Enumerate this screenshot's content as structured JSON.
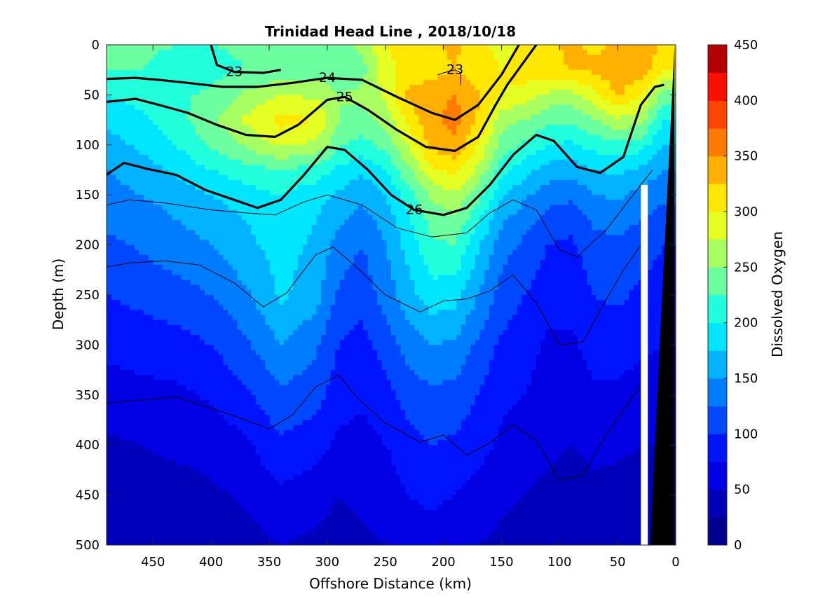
{
  "chart_data": {
    "type": "heatmap",
    "subtype": "filled-contour-section",
    "title": "Trinidad Head Line , 2018/10/18",
    "xlabel": "Offshore Distance (km)",
    "ylabel": "Depth (m)",
    "colorbar_label": "Dissolved Oxygen",
    "xlim": [
      490,
      0
    ],
    "x_reversed": true,
    "ylim": [
      0,
      500
    ],
    "y_reversed": true,
    "x_ticks": [
      "450",
      "400",
      "350",
      "300",
      "250",
      "200",
      "150",
      "100",
      "50",
      "0"
    ],
    "y_ticks": [
      "0",
      "50",
      "100",
      "150",
      "200",
      "250",
      "300",
      "350",
      "400",
      "450",
      "500"
    ],
    "colorbar_ticks": [
      "0",
      "50",
      "100",
      "150",
      "200",
      "250",
      "300",
      "350",
      "400",
      "450"
    ],
    "colorbar_range": [
      0,
      450
    ],
    "colorbar_step": 25,
    "colormap": [
      "#00008f",
      "#0000b8",
      "#0000e2",
      "#0014ff",
      "#0048ff",
      "#007dff",
      "#00b2ff",
      "#00e6ff",
      "#22ffdd",
      "#6bffa0",
      "#a8ff62",
      "#e5ff25",
      "#ffe700",
      "#ffb000",
      "#ff7a00",
      "#ff4400",
      "#ff0e00",
      "#b40000"
    ],
    "x_stations_km": [
      490,
      460,
      430,
      400,
      370,
      340,
      310,
      290,
      270,
      250,
      230,
      210,
      190,
      170,
      150,
      130,
      110,
      90,
      70,
      50,
      30,
      10
    ],
    "depths_m": [
      0,
      25,
      50,
      75,
      100,
      125,
      150,
      175,
      200,
      250,
      300,
      350,
      400,
      450,
      500
    ],
    "oxygen_profiles": [
      [
        230,
        230,
        225,
        225,
        230,
        235,
        240,
        245,
        255,
        300,
        310,
        320,
        330,
        310,
        290,
        305,
        320,
        330,
        320,
        330,
        350,
        320
      ],
      [
        225,
        225,
        215,
        215,
        225,
        235,
        240,
        235,
        240,
        290,
        310,
        315,
        325,
        310,
        300,
        310,
        320,
        325,
        330,
        340,
        340,
        300
      ],
      [
        200,
        210,
        220,
        230,
        255,
        275,
        270,
        250,
        255,
        280,
        330,
        340,
        350,
        330,
        300,
        290,
        270,
        265,
        290,
        330,
        300,
        240
      ],
      [
        180,
        195,
        215,
        245,
        280,
        310,
        300,
        250,
        240,
        260,
        310,
        345,
        360,
        320,
        260,
        250,
        230,
        230,
        250,
        270,
        260,
        200
      ],
      [
        165,
        180,
        200,
        230,
        255,
        280,
        270,
        230,
        215,
        235,
        280,
        335,
        345,
        300,
        240,
        220,
        200,
        195,
        210,
        220,
        210,
        175
      ],
      [
        150,
        165,
        180,
        200,
        215,
        225,
        215,
        195,
        180,
        200,
        245,
        295,
        310,
        270,
        210,
        185,
        165,
        160,
        175,
        180,
        170,
        150
      ],
      [
        140,
        150,
        160,
        175,
        190,
        200,
        185,
        170,
        155,
        175,
        215,
        255,
        270,
        235,
        180,
        155,
        135,
        130,
        150,
        155,
        140,
        130
      ],
      [
        130,
        138,
        150,
        160,
        175,
        190,
        175,
        155,
        140,
        160,
        195,
        235,
        245,
        205,
        155,
        135,
        115,
        110,
        130,
        135,
        125,
        115
      ],
      [
        120,
        128,
        140,
        150,
        170,
        185,
        170,
        140,
        125,
        150,
        185,
        220,
        225,
        180,
        135,
        120,
        100,
        95,
        115,
        120,
        110,
        100
      ],
      [
        100,
        108,
        115,
        125,
        145,
        180,
        160,
        120,
        110,
        135,
        165,
        190,
        185,
        150,
        115,
        100,
        85,
        85,
        100,
        105,
        95,
        90
      ],
      [
        80,
        85,
        90,
        100,
        120,
        150,
        130,
        100,
        90,
        110,
        135,
        150,
        145,
        120,
        95,
        85,
        70,
        70,
        85,
        85,
        80,
        75
      ],
      [
        65,
        68,
        70,
        78,
        95,
        120,
        110,
        85,
        80,
        90,
        110,
        120,
        115,
        100,
        80,
        75,
        65,
        60,
        70,
        70,
        65,
        60
      ],
      [
        45,
        50,
        55,
        60,
        70,
        95,
        85,
        70,
        65,
        75,
        90,
        100,
        95,
        85,
        70,
        60,
        55,
        50,
        55,
        55,
        50,
        50
      ],
      [
        35,
        40,
        40,
        45,
        55,
        70,
        60,
        50,
        55,
        60,
        75,
        80,
        75,
        65,
        55,
        50,
        45,
        40,
        45,
        40,
        40,
        40
      ],
      [
        25,
        28,
        30,
        35,
        40,
        50,
        45,
        40,
        45,
        50,
        60,
        65,
        60,
        50,
        45,
        40,
        35,
        30,
        35,
        30,
        30,
        30
      ]
    ],
    "density_isopycnals": [
      {
        "label": "23",
        "bold": true,
        "points": [
          [
            400,
            0
          ],
          [
            395,
            20
          ],
          [
            380,
            27
          ],
          [
            355,
            28
          ],
          [
            340,
            25
          ]
        ]
      },
      {
        "label": "23",
        "bold": false,
        "points": [
          [
            205,
            30
          ],
          [
            200,
            28
          ],
          [
            190,
            25
          ],
          [
            185,
            28
          ],
          [
            185,
            40
          ]
        ]
      },
      {
        "label": "24",
        "bold": true,
        "points": [
          [
            490,
            34
          ],
          [
            465,
            33
          ],
          [
            445,
            35
          ],
          [
            420,
            38
          ],
          [
            390,
            42
          ],
          [
            360,
            42
          ],
          [
            330,
            38
          ],
          [
            300,
            33
          ],
          [
            270,
            35
          ],
          [
            240,
            52
          ],
          [
            210,
            68
          ],
          [
            190,
            75
          ],
          [
            170,
            60
          ],
          [
            150,
            30
          ],
          [
            135,
            0
          ]
        ]
      },
      {
        "label": "25",
        "bold": true,
        "points": [
          [
            490,
            57
          ],
          [
            465,
            54
          ],
          [
            445,
            60
          ],
          [
            420,
            68
          ],
          [
            395,
            80
          ],
          [
            370,
            90
          ],
          [
            345,
            92
          ],
          [
            325,
            80
          ],
          [
            300,
            55
          ],
          [
            285,
            52
          ],
          [
            265,
            65
          ],
          [
            240,
            85
          ],
          [
            215,
            102
          ],
          [
            190,
            106
          ],
          [
            170,
            92
          ],
          [
            155,
            60
          ],
          [
            145,
            40
          ],
          [
            120,
            0
          ]
        ]
      },
      {
        "label": "26",
        "bold": true,
        "points": [
          [
            490,
            130
          ],
          [
            475,
            118
          ],
          [
            455,
            124
          ],
          [
            430,
            130
          ],
          [
            405,
            145
          ],
          [
            380,
            155
          ],
          [
            360,
            163
          ],
          [
            340,
            155
          ],
          [
            320,
            130
          ],
          [
            300,
            102
          ],
          [
            285,
            105
          ],
          [
            265,
            125
          ],
          [
            245,
            150
          ],
          [
            225,
            165
          ],
          [
            200,
            170
          ],
          [
            180,
            163
          ],
          [
            160,
            140
          ],
          [
            140,
            110
          ],
          [
            120,
            90
          ],
          [
            105,
            96
          ],
          [
            85,
            122
          ],
          [
            65,
            128
          ],
          [
            45,
            112
          ],
          [
            30,
            60
          ],
          [
            18,
            42
          ],
          [
            10,
            40
          ]
        ]
      },
      {
        "label": "",
        "bold": false,
        "points": [
          [
            490,
            160
          ],
          [
            470,
            155
          ],
          [
            440,
            158
          ],
          [
            400,
            165
          ],
          [
            370,
            168
          ],
          [
            345,
            170
          ],
          [
            320,
            157
          ],
          [
            300,
            150
          ],
          [
            270,
            160
          ],
          [
            240,
            183
          ],
          [
            210,
            192
          ],
          [
            180,
            188
          ],
          [
            160,
            168
          ],
          [
            140,
            155
          ],
          [
            120,
            165
          ],
          [
            100,
            205
          ],
          [
            85,
            212
          ],
          [
            60,
            185
          ],
          [
            40,
            155
          ],
          [
            20,
            125
          ]
        ]
      },
      {
        "label": "",
        "bold": false,
        "points": [
          [
            490,
            222
          ],
          [
            470,
            218
          ],
          [
            440,
            216
          ],
          [
            410,
            220
          ],
          [
            380,
            238
          ],
          [
            355,
            262
          ],
          [
            335,
            248
          ],
          [
            310,
            210
          ],
          [
            295,
            202
          ],
          [
            275,
            222
          ],
          [
            250,
            250
          ],
          [
            220,
            267
          ],
          [
            200,
            256
          ],
          [
            180,
            254
          ],
          [
            160,
            246
          ],
          [
            140,
            230
          ],
          [
            120,
            258
          ],
          [
            100,
            300
          ],
          [
            80,
            297
          ],
          [
            60,
            255
          ],
          [
            45,
            225
          ],
          [
            30,
            200
          ]
        ]
      },
      {
        "label": "",
        "bold": false,
        "points": [
          [
            490,
            358
          ],
          [
            460,
            355
          ],
          [
            430,
            352
          ],
          [
            400,
            363
          ],
          [
            370,
            375
          ],
          [
            350,
            384
          ],
          [
            330,
            370
          ],
          [
            310,
            342
          ],
          [
            290,
            330
          ],
          [
            275,
            352
          ],
          [
            250,
            378
          ],
          [
            220,
            397
          ],
          [
            200,
            390
          ],
          [
            180,
            410
          ],
          [
            160,
            398
          ],
          [
            140,
            380
          ],
          [
            120,
            395
          ],
          [
            100,
            435
          ],
          [
            80,
            430
          ],
          [
            60,
            390
          ],
          [
            45,
            365
          ],
          [
            30,
            340
          ]
        ]
      }
    ],
    "bathymetry_polygon_km_m": [
      [
        22,
        500
      ],
      [
        1,
        500
      ],
      [
        1,
        0
      ]
    ],
    "no_data_region": [
      [
        24,
        500
      ],
      [
        30,
        500
      ],
      [
        30,
        140
      ],
      [
        24,
        140
      ]
    ]
  }
}
